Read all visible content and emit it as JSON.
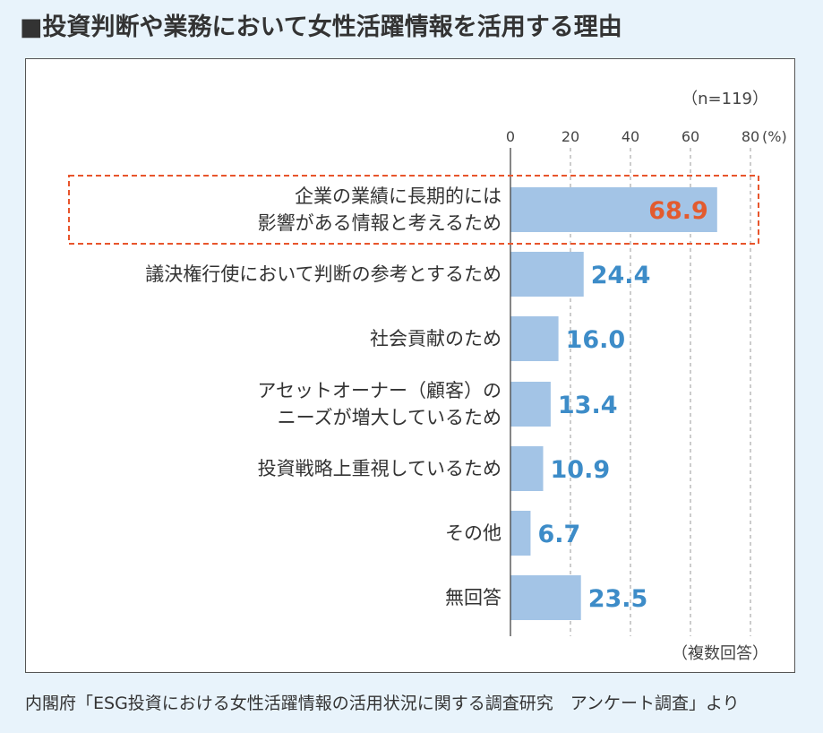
{
  "header": {
    "title": "■投資判断や業務において女性活躍情報を活用する理由",
    "source": "内閣府「ESG投資における女性活躍情報の活用状況に関する調査研究　アンケート調査」より"
  },
  "chart_data": {
    "type": "bar",
    "orientation": "horizontal",
    "sample_note": "（n=119）",
    "footnote": "（複数回答）",
    "unit_label": "(%)",
    "xlim": [
      0,
      80
    ],
    "ticks": [
      0,
      20,
      40,
      60,
      80
    ],
    "grid": "dashed vertical",
    "categories": [
      [
        "企業の業績に長期的には",
        "影響がある情報と考えるため"
      ],
      [
        "議決権行使において判断の参考とするため"
      ],
      [
        "社会貢献のため"
      ],
      [
        "アセットオーナー（顧客）の",
        "ニーズが増大しているため"
      ],
      [
        "投資戦略上重視しているため"
      ],
      [
        "その他"
      ],
      [
        "無回答"
      ]
    ],
    "values": [
      68.9,
      24.4,
      16.0,
      13.4,
      10.9,
      6.7,
      23.5
    ],
    "value_labels": [
      "68.9",
      "24.4",
      "16.0",
      "13.4",
      "10.9",
      "6.7",
      "23.5"
    ],
    "highlight_index": 0,
    "colors": {
      "bar": "#a3c4e6",
      "value": "#3d8cc8",
      "highlight_value": "#e35b2e",
      "highlight_box": "#e8552c"
    }
  }
}
